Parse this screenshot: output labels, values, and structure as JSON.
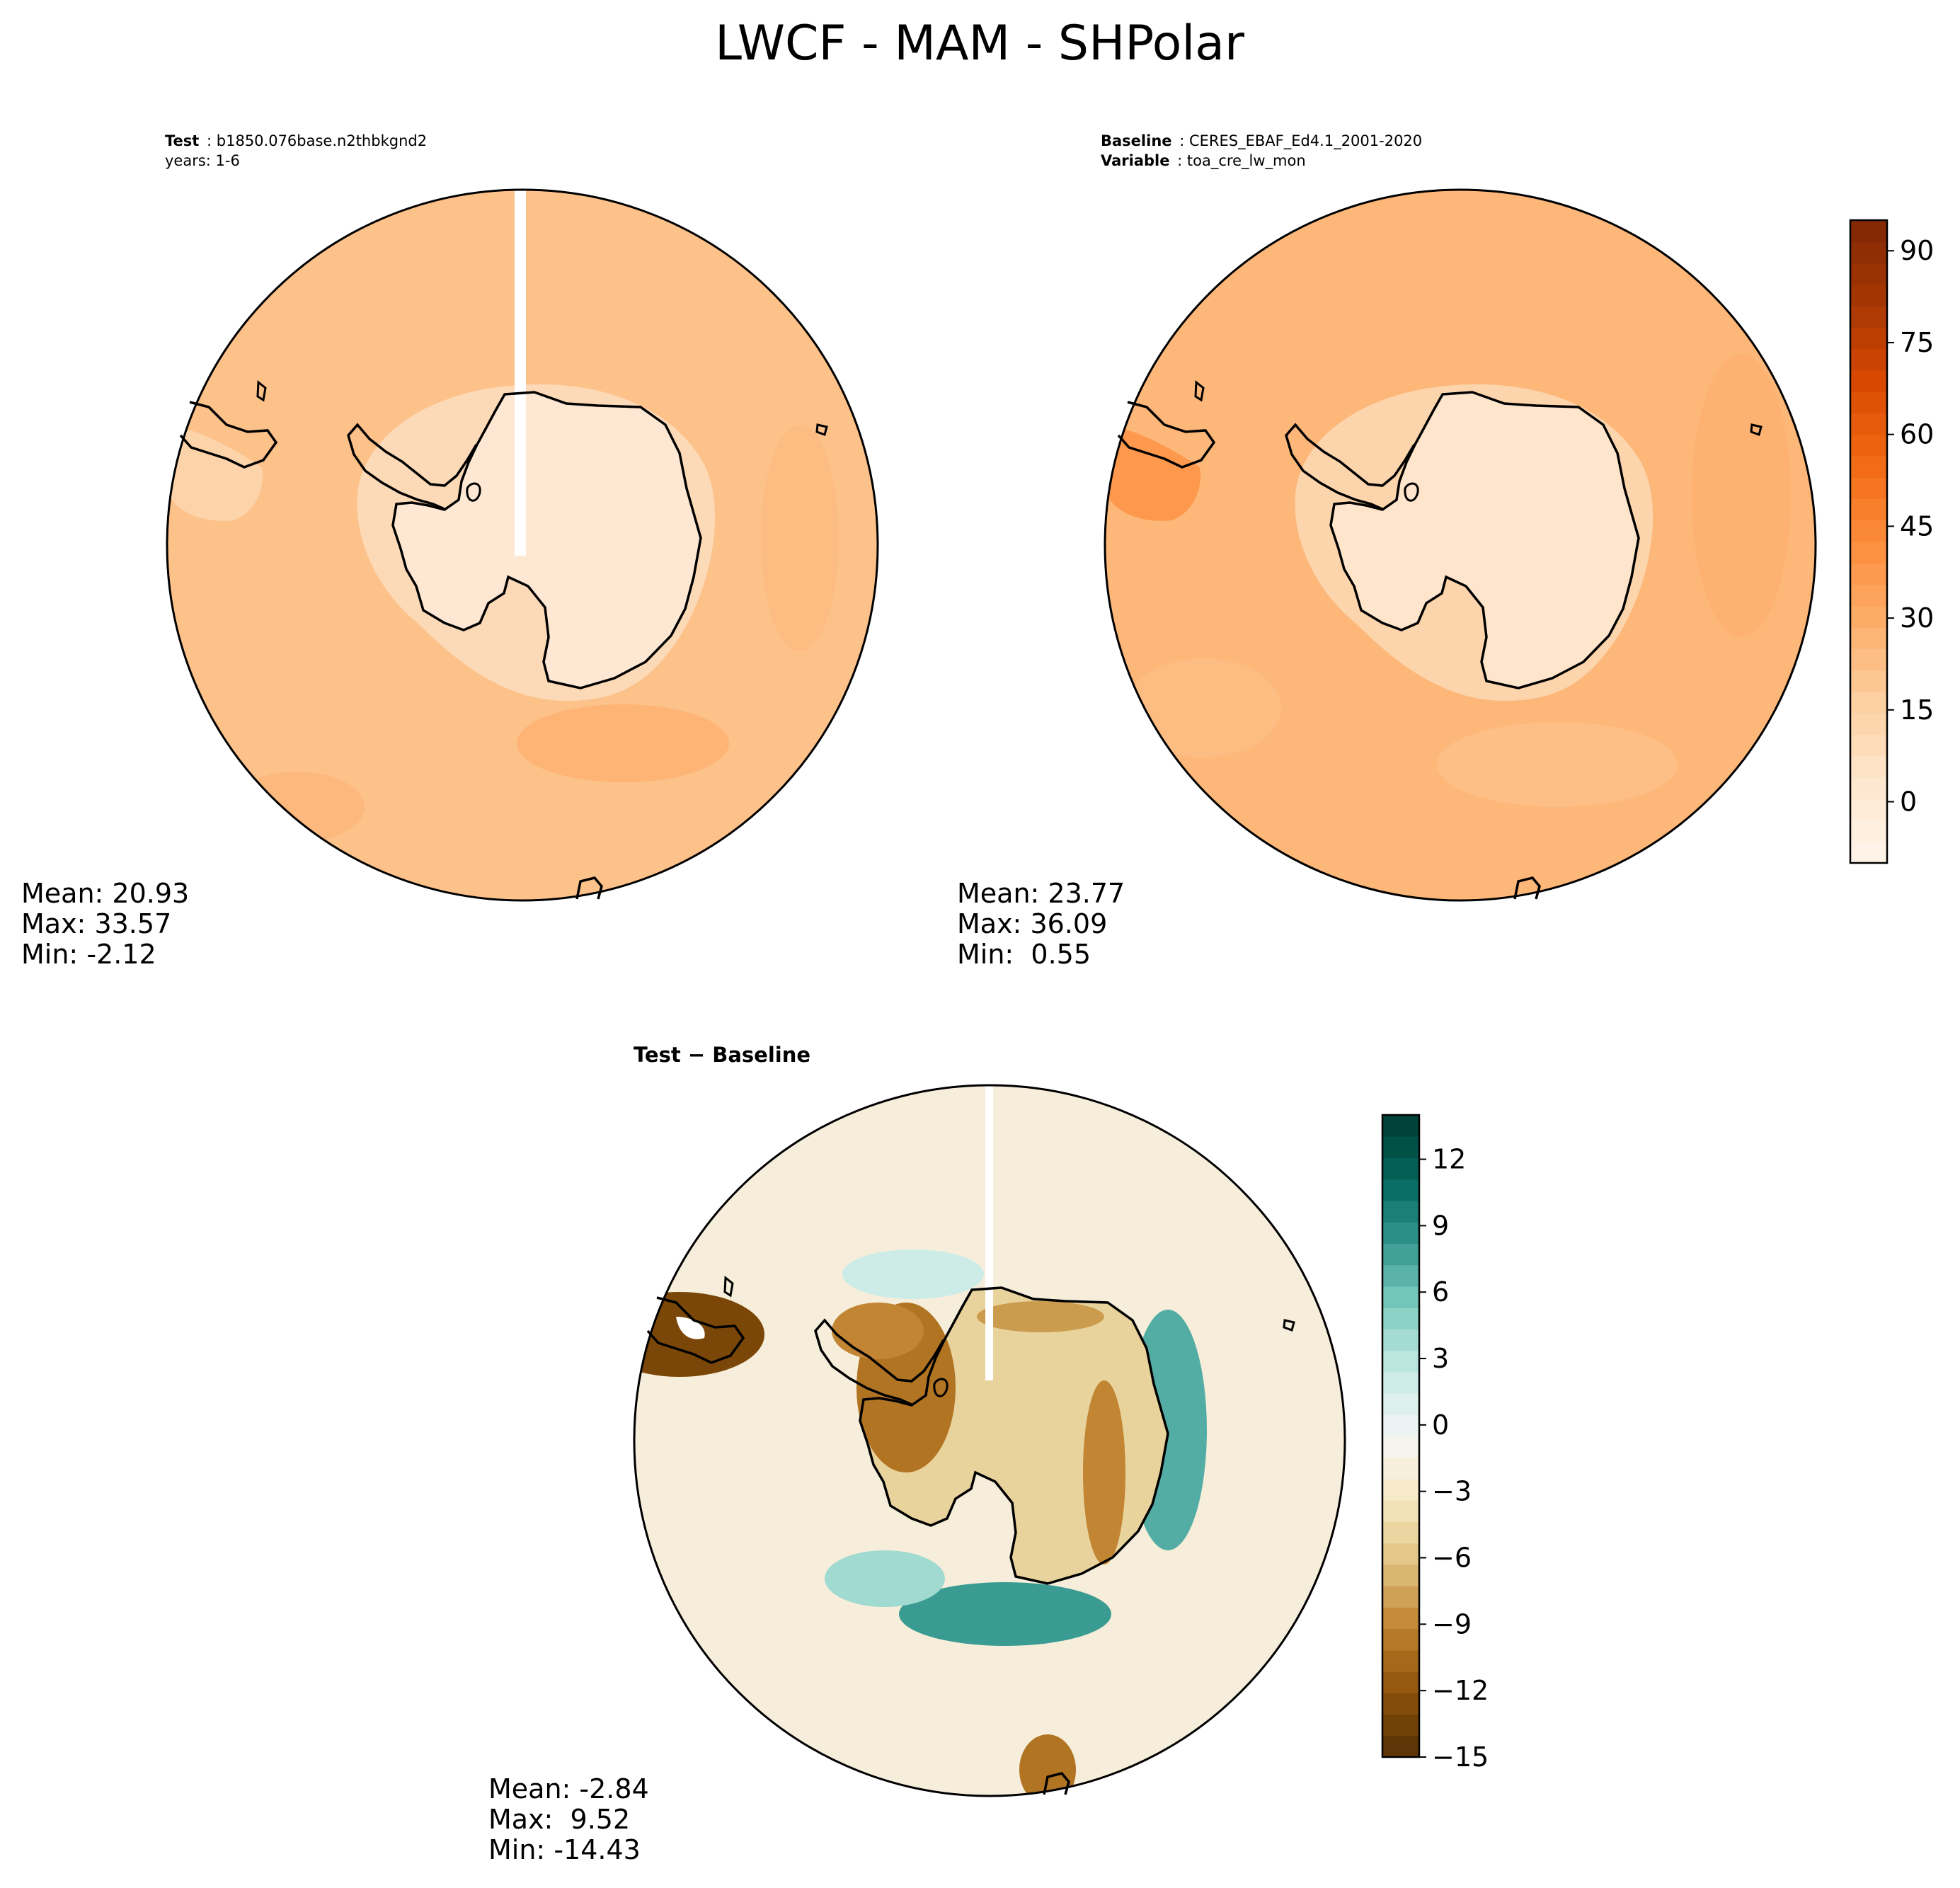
{
  "title": "LWCF - MAM - SHPolar",
  "chart_data": [
    {
      "type": "heatmap",
      "projection": "south-polar-stereographic",
      "header": [
        {
          "key": "Test",
          "value": "b1850.076base.n2thbkgnd2"
        },
        {
          "key": "",
          "value": "years: 1-6"
        }
      ],
      "stats": {
        "mean": "20.93",
        "max": "33.57",
        "min": "-2.12"
      },
      "colormap": "Oranges",
      "levels_range": [
        -10,
        95
      ],
      "ocean_value": 22,
      "coast_ring_value": 10,
      "interior_value": 1
    },
    {
      "type": "heatmap",
      "projection": "south-polar-stereographic",
      "header": [
        {
          "key": "Baseline",
          "value": "CERES_EBAF_Ed4.1_2001-2020"
        },
        {
          "key": "Variable",
          "value": "toa_cre_lw_mon"
        }
      ],
      "stats": {
        "mean": "23.77",
        "max": "36.09",
        "min": " 0.55"
      },
      "colormap": "Oranges",
      "ocean_value": 26,
      "coast_ring_value": 13,
      "interior_value": 4,
      "colorbar": {
        "ticks": [
          "90",
          "75",
          "60",
          "45",
          "30",
          "15",
          "0"
        ],
        "tick_values": [
          90,
          75,
          60,
          45,
          30,
          15,
          0
        ],
        "range": [
          -10,
          95
        ]
      }
    },
    {
      "type": "heatmap",
      "projection": "south-polar-stereographic",
      "header": [
        {
          "key": "Test",
          "value": "Baseline"
        }
      ],
      "header_sep": " − ",
      "stats": {
        "mean": "-2.84",
        "max": " 9.52",
        "min": "-14.43"
      },
      "colormap": "BrBG",
      "ocean_value": -2,
      "ring_positive_value": 4,
      "interior_value": -5,
      "colorbar": {
        "ticks": [
          "12",
          "9",
          "6",
          "3",
          "0",
          "−3",
          "−6",
          "−9",
          "−12",
          "−15"
        ],
        "tick_values": [
          12,
          9,
          6,
          3,
          0,
          -3,
          -6,
          -9,
          -12,
          -15
        ],
        "range": [
          -15,
          14
        ]
      }
    }
  ],
  "colors": {
    "oranges": [
      "#fff5eb",
      "#fee6ce",
      "#fdd0a2",
      "#fdae6b",
      "#fd8d3c",
      "#f16913",
      "#d94801",
      "#a63603",
      "#7f2704"
    ],
    "brbg": [
      "#543005",
      "#8c510a",
      "#bf812d",
      "#dfc27d",
      "#f6e8c3",
      "#f5f5f5",
      "#c7eae5",
      "#80cdc1",
      "#35978f",
      "#01665e",
      "#003c30"
    ]
  }
}
